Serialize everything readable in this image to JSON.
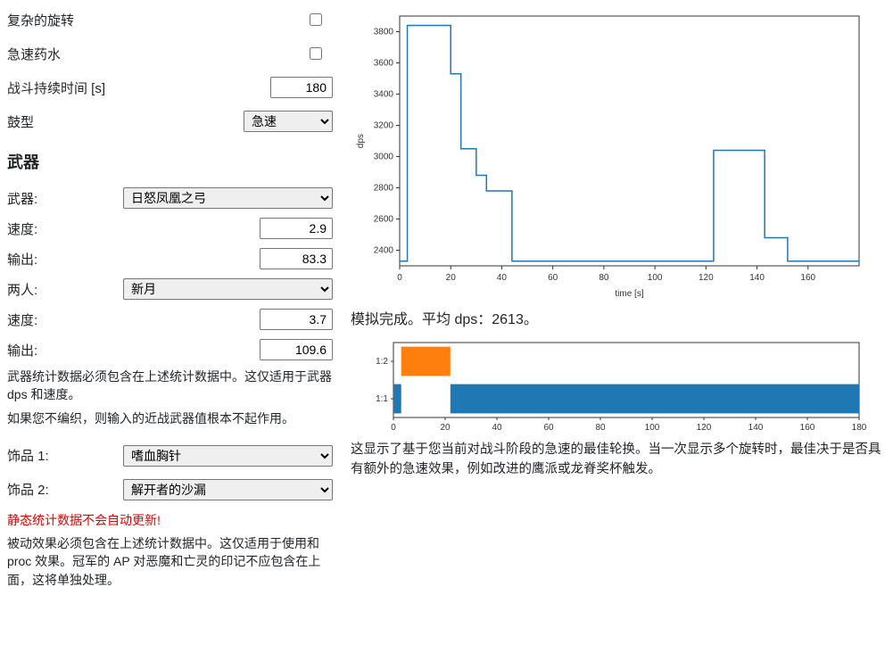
{
  "options": {
    "complex_rotation_label": "复杂的旋转",
    "complex_rotation_checked": false,
    "haste_potion_label": "急速药水",
    "haste_potion_checked": false,
    "fight_duration_label": "战斗持续时间 [s]",
    "fight_duration_value": "180",
    "drum_type_label": "鼓型",
    "drum_type_value": "急速"
  },
  "weapon_section": {
    "heading": "武器",
    "weapon_label": "武器:",
    "weapon_select": "日怒凤凰之弓",
    "speed_label": "速度:",
    "speed1": "2.9",
    "output_label": "输出:",
    "output1": "83.3",
    "offhand_label": "两人:",
    "offhand_select": "新月",
    "speed2": "3.7",
    "output2": "109.6",
    "help1": "武器统计数据必须包含在上述统计数据中。这仅适用于武器 dps 和速度。",
    "help2": "如果您不编织，则输入的近战武器值根本不起作用。"
  },
  "trinkets": {
    "t1_label": "饰品 1:",
    "t1_select": "嗜血胸针",
    "t2_label": "饰品 2:",
    "t2_select": "解开者的沙漏",
    "warn": "静态统计数据不会自动更新!",
    "help": "被动效果必须包含在上述统计数据中。这仅适用于使用和 proc 效果。冠军的 AP 对恶魔和亡灵的印记不应包含在上面，这将单独处理。"
  },
  "dps_chart": {
    "type": "line",
    "xlabel": "time [s]",
    "ylabel": "dps",
    "label_fontsize": 10,
    "tick_fontsize": 10,
    "xlim": [
      0,
      180
    ],
    "ylim": [
      2300,
      3900
    ],
    "xticks": [
      0,
      20,
      40,
      60,
      80,
      100,
      120,
      140,
      160
    ],
    "yticks": [
      2400,
      2600,
      2800,
      3000,
      3200,
      3400,
      3600,
      3800
    ],
    "line_color": "#1f77b4",
    "line_width": 1.5,
    "background_color": "#ffffff",
    "border_color": "#333333",
    "points": [
      [
        0,
        2330
      ],
      [
        3,
        2330
      ],
      [
        3,
        3840
      ],
      [
        20,
        3840
      ],
      [
        20,
        3530
      ],
      [
        24,
        3530
      ],
      [
        24,
        3050
      ],
      [
        30,
        3050
      ],
      [
        30,
        2880
      ],
      [
        34,
        2880
      ],
      [
        34,
        2780
      ],
      [
        44,
        2780
      ],
      [
        44,
        2330
      ],
      [
        123,
        2330
      ],
      [
        123,
        3040
      ],
      [
        143,
        3040
      ],
      [
        143,
        2480
      ],
      [
        152,
        2480
      ],
      [
        152,
        2330
      ],
      [
        180,
        2330
      ]
    ]
  },
  "result": {
    "text_prefix": "模拟完成。平均 dps：",
    "avg_dps": "2613",
    "text_suffix": "。"
  },
  "rotation_chart": {
    "type": "bar-timeline",
    "xlim": [
      0,
      180
    ],
    "xticks": [
      0,
      20,
      40,
      60,
      80,
      100,
      120,
      140,
      160,
      180
    ],
    "tick_fontsize": 10,
    "background_color": "#ffffff",
    "border_color": "#333333",
    "rows": [
      {
        "label": "1:2",
        "bars": [
          {
            "start": 3,
            "end": 22,
            "color": "#ff7f0e"
          }
        ]
      },
      {
        "label": "1:1",
        "bars": [
          {
            "start": 0,
            "end": 3,
            "color": "#1f77b4"
          },
          {
            "start": 22,
            "end": 180,
            "color": "#1f77b4"
          }
        ]
      }
    ]
  },
  "rotation_desc": "这显示了基于您当前对战斗阶段的急速的最佳轮换。当一次显示多个旋转时，最佳决于是否具有额外的急速效果，例如改进的鹰派或龙脊奖杯触发。"
}
